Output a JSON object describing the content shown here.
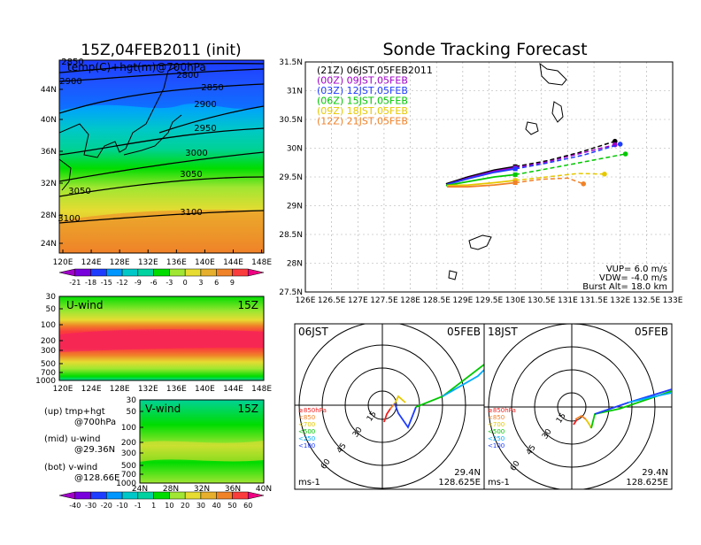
{
  "titles": {
    "left": "15Z,04FEB2011 (init)",
    "right": "Sonde Tracking Forecast"
  },
  "map": {
    "overlay_label": "temp(C)+hgt(m)@700hPa",
    "lat_labels": [
      "44N",
      "40N",
      "36N",
      "32N",
      "28N",
      "24N"
    ],
    "lon_labels": [
      "120E",
      "124E",
      "128E",
      "132E",
      "136E",
      "140E",
      "144E",
      "148E"
    ],
    "contour_labels": [
      "2850",
      "2900",
      "2800",
      "2850",
      "2900",
      "2950",
      "3000",
      "3050",
      "3050",
      "3100",
      "3100"
    ]
  },
  "temp_colorbar": {
    "ticks": [
      "-21",
      "-18",
      "-15",
      "-12",
      "-9",
      "-6",
      "-3",
      "0",
      "3",
      "6",
      "9"
    ],
    "colors": [
      "#a000c8",
      "#7800dc",
      "#1e3cff",
      "#0096ff",
      "#00c8c8",
      "#00d2a0",
      "#00dc00",
      "#a0e632",
      "#e6dc32",
      "#e6af2d",
      "#f08228",
      "#fa3c3c",
      "#f00082"
    ]
  },
  "uwind": {
    "title": "U-wind",
    "time": "15Z",
    "y_ticks": [
      "30",
      "50",
      "100",
      "200",
      "300",
      "500",
      "700",
      "1000"
    ],
    "x_ticks": [
      "120E",
      "124E",
      "128E",
      "132E",
      "136E",
      "140E",
      "144E",
      "148E"
    ]
  },
  "vwind": {
    "title": "V-wind",
    "time": "15Z",
    "y_ticks": [
      "30",
      "50",
      "100",
      "200",
      "300",
      "500",
      "700",
      "1000"
    ],
    "x_ticks": [
      "24N",
      "28N",
      "32N",
      "36N",
      "40N"
    ]
  },
  "legend_text": {
    "up_a": "(up) tmp+hgt",
    "up_b": "@700hPa",
    "mid_a": "(mid) u-wind",
    "mid_b": "@29.36N",
    "bot_a": "(bot) v-wind",
    "bot_b": "@128.66E"
  },
  "wind_colorbar": {
    "ticks": [
      "-40",
      "-30",
      "-20",
      "-10",
      "-1",
      "1",
      "10",
      "20",
      "30",
      "40",
      "50",
      "60"
    ],
    "colors": [
      "#a000c8",
      "#7800dc",
      "#1e3cff",
      "#0096ff",
      "#00c8c8",
      "#00d2a0",
      "#00dc00",
      "#a0e632",
      "#e6dc32",
      "#e6af2d",
      "#f08228",
      "#fa3c3c",
      "#f00082"
    ]
  },
  "tracking": {
    "lat_labels": [
      "31.5N",
      "31N",
      "30.5N",
      "30N",
      "29.5N",
      "29N",
      "28.5N",
      "28N",
      "27.5N"
    ],
    "lon_labels": [
      "126E",
      "126.5E",
      "127E",
      "127.5E",
      "128E",
      "128.5E",
      "129E",
      "129.5E",
      "130E",
      "130.5E",
      "131E",
      "131.5E",
      "132E",
      "132.5E",
      "133E"
    ],
    "legend": [
      {
        "text": "(21Z) 06JST,05FEB2011",
        "color": "#000000"
      },
      {
        "text": "(00Z) 09JST,05FEB",
        "color": "#a000c8"
      },
      {
        "text": "(03Z) 12JST,05FEB",
        "color": "#1e3cff"
      },
      {
        "text": "(06Z) 15JST,05FEB",
        "color": "#00c800"
      },
      {
        "text": "(09Z) 18JST,05FEB",
        "color": "#e6c800"
      },
      {
        "text": "(12Z) 21JST,05FEB",
        "color": "#f08228"
      }
    ],
    "params": {
      "vup": "VUP= 6.0 m/s",
      "vdw": "VDW= -4.0 m/s",
      "burst": "Burst Alt= 18.0 km"
    }
  },
  "hodo_left": {
    "time_label": "06JST",
    "date_label": "05FEB",
    "rings": [
      "15",
      "30",
      "45",
      "60"
    ],
    "lat": "29.4N",
    "lon": "128.625E",
    "unit": "ms-1"
  },
  "hodo_right": {
    "time_label": "18JST",
    "date_label": "05FEB",
    "rings": [
      "15",
      "30",
      "45",
      "60"
    ],
    "lat": "29.4N",
    "lon": "128.625E",
    "unit": "ms-1"
  },
  "hodo_levels": [
    {
      "text": "≥850hPa",
      "color": "#f01e1e"
    },
    {
      "text": "<850",
      "color": "#f08228"
    },
    {
      "text": "<700",
      "color": "#e6c800"
    },
    {
      "text": "<500",
      "color": "#00c800"
    },
    {
      "text": "<250",
      "color": "#00aaff"
    },
    {
      "text": "<100",
      "color": "#1e3cff"
    }
  ],
  "chart_data": {
    "type": "line",
    "title": "Sonde Tracking Forecast",
    "xlim": [
      126,
      133
    ],
    "ylim": [
      27.5,
      31.5
    ],
    "series": [
      {
        "name": "(21Z) 06JST,05FEB2011",
        "lon": [
          128.68,
          129.1,
          129.6,
          130.0,
          130.6,
          131.2,
          131.9
        ],
        "lat": [
          29.38,
          29.5,
          29.62,
          29.68,
          29.78,
          29.92,
          30.12
        ]
      },
      {
        "name": "(00Z) 09JST,05FEB",
        "lon": [
          128.7,
          129.1,
          129.6,
          130.0,
          130.6,
          131.2,
          131.9
        ],
        "lat": [
          29.37,
          29.48,
          29.6,
          29.66,
          29.76,
          29.9,
          30.06
        ]
      },
      {
        "name": "(03Z) 12JST,05FEB",
        "lon": [
          128.7,
          129.1,
          129.6,
          130.0,
          130.6,
          131.3,
          132.0
        ],
        "lat": [
          29.37,
          29.47,
          29.58,
          29.64,
          29.74,
          29.88,
          30.07
        ]
      },
      {
        "name": "(06Z) 15JST,05FEB",
        "lon": [
          128.68,
          129.1,
          129.6,
          130.0,
          130.6,
          131.3,
          132.1
        ],
        "lat": [
          29.35,
          29.42,
          29.5,
          29.54,
          29.64,
          29.76,
          29.9
        ]
      },
      {
        "name": "(09Z) 18JST,05FEB",
        "lon": [
          128.7,
          129.1,
          129.6,
          130.0,
          130.6,
          131.2,
          131.7
        ],
        "lat": [
          29.35,
          29.36,
          29.4,
          29.44,
          29.5,
          29.56,
          29.55
        ]
      },
      {
        "name": "(12Z) 21JST,05FEB",
        "lon": [
          128.7,
          129.1,
          129.6,
          130.0,
          130.5,
          131.0,
          131.3
        ],
        "lat": [
          29.33,
          29.33,
          29.36,
          29.4,
          29.46,
          29.48,
          29.38
        ]
      }
    ]
  }
}
